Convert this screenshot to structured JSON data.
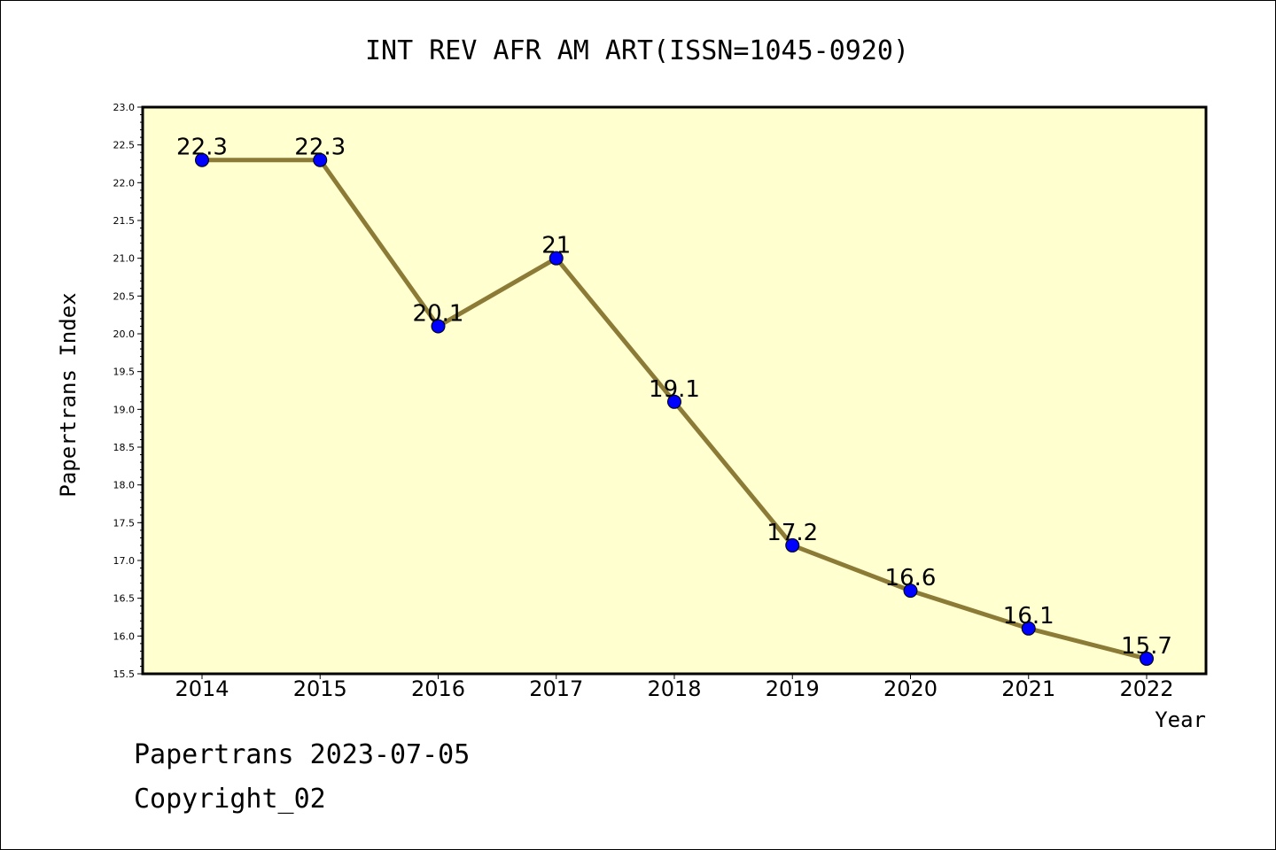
{
  "chart_data": {
    "type": "line",
    "title": "INT REV AFR AM ART(ISSN=1045-0920)",
    "xlabel": "Year",
    "ylabel": "Papertrans Index",
    "categories": [
      "2014",
      "2015",
      "2016",
      "2017",
      "2018",
      "2019",
      "2020",
      "2021",
      "2022"
    ],
    "series": [
      {
        "values": [
          22.3,
          22.3,
          20.1,
          21.0,
          19.1,
          17.2,
          16.6,
          16.1,
          15.7
        ],
        "data_labels": [
          "22.3",
          "22.3",
          "20.1",
          "21",
          "19.1",
          "17.2",
          "16.6",
          "16.1",
          "15.7"
        ]
      }
    ],
    "ylim": [
      15.5,
      23.0
    ],
    "yticks": [
      "15.5",
      "16.0",
      "16.5",
      "17.0",
      "17.5",
      "18.0",
      "18.5",
      "19.0",
      "19.5",
      "20.0",
      "20.5",
      "21.0",
      "21.5",
      "22.0",
      "22.5",
      "23.0"
    ],
    "grid": false,
    "colors": {
      "plot_background": "#ffffd0",
      "line": "#8c7b36",
      "marker": "#0000ff"
    }
  },
  "footer": {
    "line1": "Papertrans 2023-07-05",
    "line2": "Copyright_02"
  }
}
